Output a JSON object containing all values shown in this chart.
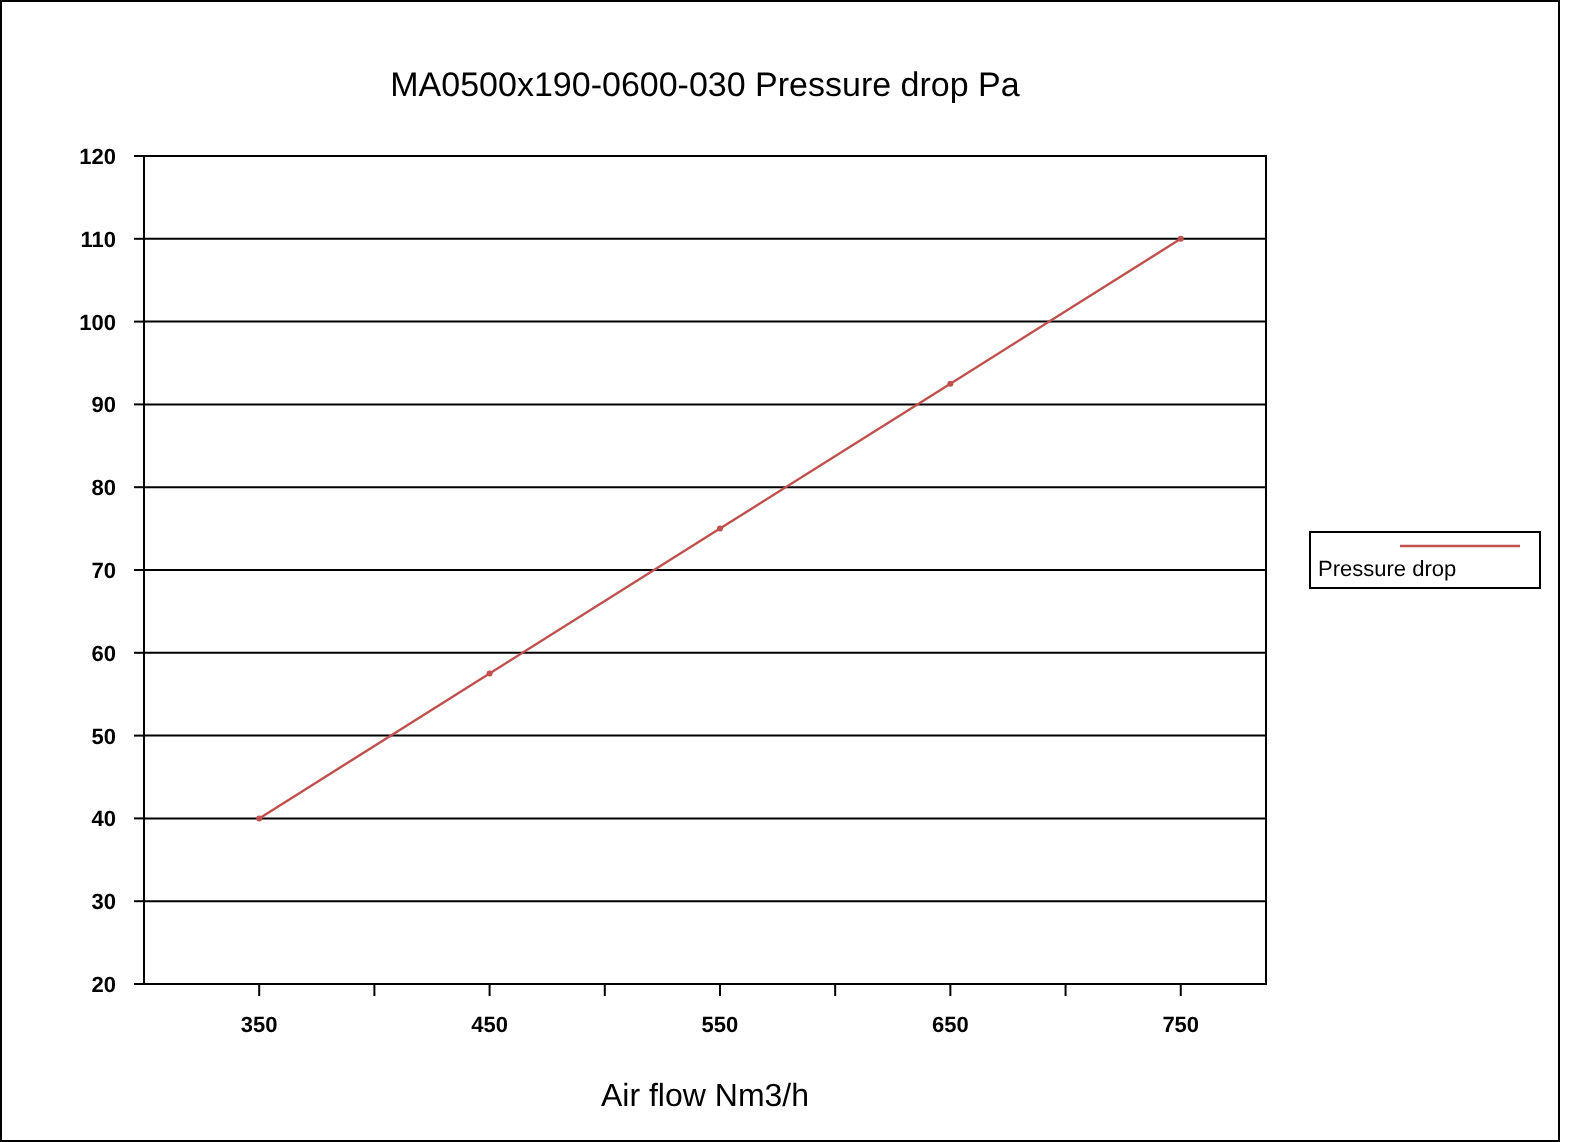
{
  "chart_data": {
    "type": "line",
    "title": "MA0500x190-0600-030 Pressure drop Pa",
    "xlabel": "Air flow Nm3/h",
    "x": [
      350,
      450,
      550,
      650,
      750
    ],
    "series": [
      {
        "name": "Pressure drop",
        "color": "#c0504d",
        "values": [
          40,
          57.5,
          75,
          92.5,
          110
        ]
      }
    ],
    "xlim": [
      300,
      787
    ],
    "xticks": [
      350,
      {
        "value": 400,
        "label": null
      },
      450,
      {
        "value": 500,
        "label": null
      },
      550,
      {
        "value": 600,
        "label": null
      },
      650,
      {
        "value": 700,
        "label": null
      },
      750
    ],
    "ylim": [
      20,
      120
    ],
    "yticks": [
      20,
      30,
      40,
      50,
      60,
      70,
      80,
      90,
      100,
      110,
      120
    ],
    "grid": "y",
    "legend": "right",
    "marker": "circle",
    "line_style": "solid"
  }
}
